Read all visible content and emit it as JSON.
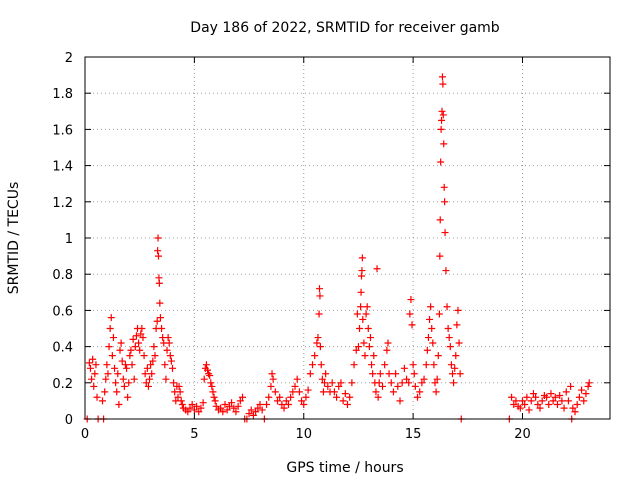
{
  "chart_data": {
    "type": "scatter",
    "title": "Day 186 of 2022, SRMTID for receiver gamb",
    "xlabel": "GPS time / hours",
    "ylabel": "SRMTID / TECUs",
    "xlim": [
      0,
      24
    ],
    "ylim": [
      0,
      2
    ],
    "xticks": [
      0,
      5,
      10,
      15,
      20
    ],
    "xtick_labels": [
      "0",
      "5",
      "10",
      "15",
      "20"
    ],
    "yticks": [
      0,
      0.2,
      0.4,
      0.6,
      0.8,
      1,
      1.2,
      1.4,
      1.6,
      1.8,
      2
    ],
    "ytick_labels": [
      "0",
      "0.2",
      "0.4",
      "0.6",
      "0.8",
      "1",
      "1.2",
      "1.4",
      "1.6",
      "1.8",
      "2"
    ],
    "grid": true,
    "marker": "plus",
    "series": [
      {
        "name": "SRMTID",
        "color": "#ff0000",
        "points": [
          [
            0.1,
            0.0
          ],
          [
            0.2,
            0.31
          ],
          [
            0.25,
            0.28
          ],
          [
            0.3,
            0.22
          ],
          [
            0.35,
            0.33
          ],
          [
            0.4,
            0.18
          ],
          [
            0.45,
            0.25
          ],
          [
            0.5,
            0.3
          ],
          [
            0.55,
            0.12
          ],
          [
            0.6,
            0.0
          ],
          [
            0.8,
            0.1
          ],
          [
            0.85,
            0.0
          ],
          [
            0.9,
            0.15
          ],
          [
            0.95,
            0.22
          ],
          [
            1.0,
            0.3
          ],
          [
            1.05,
            0.25
          ],
          [
            1.1,
            0.4
          ],
          [
            1.15,
            0.5
          ],
          [
            1.2,
            0.56
          ],
          [
            1.25,
            0.35
          ],
          [
            1.3,
            0.45
          ],
          [
            1.35,
            0.28
          ],
          [
            1.4,
            0.2
          ],
          [
            1.45,
            0.15
          ],
          [
            1.5,
            0.25
          ],
          [
            1.55,
            0.08
          ],
          [
            1.6,
            0.38
          ],
          [
            1.65,
            0.42
          ],
          [
            1.7,
            0.32
          ],
          [
            1.75,
            0.22
          ],
          [
            1.8,
            0.18
          ],
          [
            1.85,
            0.3
          ],
          [
            1.9,
            0.28
          ],
          [
            1.95,
            0.12
          ],
          [
            2.0,
            0.2
          ],
          [
            2.05,
            0.35
          ],
          [
            2.1,
            0.38
          ],
          [
            2.15,
            0.3
          ],
          [
            2.2,
            0.44
          ],
          [
            2.25,
            0.22
          ],
          [
            2.3,
            0.4
          ],
          [
            2.35,
            0.46
          ],
          [
            2.4,
            0.5
          ],
          [
            2.45,
            0.42
          ],
          [
            2.5,
            0.38
          ],
          [
            2.55,
            0.47
          ],
          [
            2.6,
            0.5
          ],
          [
            2.65,
            0.45
          ],
          [
            2.7,
            0.35
          ],
          [
            2.75,
            0.25
          ],
          [
            2.8,
            0.2
          ],
          [
            2.85,
            0.28
          ],
          [
            2.9,
            0.18
          ],
          [
            2.95,
            0.22
          ],
          [
            3.0,
            0.3
          ],
          [
            3.05,
            0.25
          ],
          [
            3.1,
            0.32
          ],
          [
            3.15,
            0.4
          ],
          [
            3.2,
            0.35
          ],
          [
            3.25,
            0.5
          ],
          [
            3.3,
            0.54
          ],
          [
            3.32,
            0.93
          ],
          [
            3.34,
            1.0
          ],
          [
            3.36,
            0.9
          ],
          [
            3.38,
            0.78
          ],
          [
            3.4,
            0.75
          ],
          [
            3.42,
            0.64
          ],
          [
            3.45,
            0.56
          ],
          [
            3.5,
            0.5
          ],
          [
            3.55,
            0.45
          ],
          [
            3.6,
            0.42
          ],
          [
            3.65,
            0.3
          ],
          [
            3.7,
            0.22
          ],
          [
            3.75,
            0.38
          ],
          [
            3.8,
            0.45
          ],
          [
            3.85,
            0.42
          ],
          [
            3.9,
            0.35
          ],
          [
            3.95,
            0.32
          ],
          [
            4.0,
            0.28
          ],
          [
            4.05,
            0.2
          ],
          [
            4.1,
            0.15
          ],
          [
            4.15,
            0.1
          ],
          [
            4.2,
            0.18
          ],
          [
            4.25,
            0.12
          ],
          [
            4.3,
            0.18
          ],
          [
            4.35,
            0.15
          ],
          [
            4.4,
            0.1
          ],
          [
            4.45,
            0.08
          ],
          [
            4.5,
            0.06
          ],
          [
            4.6,
            0.05
          ],
          [
            4.7,
            0.04
          ],
          [
            4.8,
            0.06
          ],
          [
            4.9,
            0.08
          ],
          [
            5.0,
            0.05
          ],
          [
            5.1,
            0.07
          ],
          [
            5.2,
            0.04
          ],
          [
            5.3,
            0.06
          ],
          [
            5.4,
            0.09
          ],
          [
            5.45,
            0.22
          ],
          [
            5.5,
            0.28
          ],
          [
            5.55,
            0.3
          ],
          [
            5.6,
            0.27
          ],
          [
            5.65,
            0.25
          ],
          [
            5.7,
            0.24
          ],
          [
            5.75,
            0.2
          ],
          [
            5.8,
            0.18
          ],
          [
            5.85,
            0.15
          ],
          [
            5.9,
            0.12
          ],
          [
            5.95,
            0.1
          ],
          [
            6.0,
            0.07
          ],
          [
            6.1,
            0.05
          ],
          [
            6.2,
            0.06
          ],
          [
            6.3,
            0.04
          ],
          [
            6.4,
            0.08
          ],
          [
            6.5,
            0.05
          ],
          [
            6.6,
            0.07
          ],
          [
            6.7,
            0.09
          ],
          [
            6.8,
            0.06
          ],
          [
            6.9,
            0.04
          ],
          [
            7.0,
            0.07
          ],
          [
            7.1,
            0.1
          ],
          [
            7.2,
            0.12
          ],
          [
            7.3,
            0.0
          ],
          [
            7.4,
            0.0
          ],
          [
            7.5,
            0.03
          ],
          [
            7.6,
            0.05
          ],
          [
            7.7,
            0.02
          ],
          [
            7.8,
            0.04
          ],
          [
            7.9,
            0.06
          ],
          [
            8.0,
            0.08
          ],
          [
            8.1,
            0.05
          ],
          [
            8.2,
            0.0
          ],
          [
            8.3,
            0.08
          ],
          [
            8.4,
            0.12
          ],
          [
            8.5,
            0.18
          ],
          [
            8.55,
            0.25
          ],
          [
            8.6,
            0.22
          ],
          [
            8.7,
            0.15
          ],
          [
            8.8,
            0.1
          ],
          [
            8.9,
            0.12
          ],
          [
            9.0,
            0.08
          ],
          [
            9.1,
            0.06
          ],
          [
            9.2,
            0.1
          ],
          [
            9.3,
            0.08
          ],
          [
            9.4,
            0.12
          ],
          [
            9.5,
            0.15
          ],
          [
            9.6,
            0.18
          ],
          [
            9.7,
            0.22
          ],
          [
            9.8,
            0.15
          ],
          [
            9.9,
            0.1
          ],
          [
            10.0,
            0.08
          ],
          [
            10.1,
            0.12
          ],
          [
            10.2,
            0.16
          ],
          [
            10.3,
            0.25
          ],
          [
            10.4,
            0.3
          ],
          [
            10.5,
            0.35
          ],
          [
            10.6,
            0.42
          ],
          [
            10.65,
            0.45
          ],
          [
            10.7,
            0.58
          ],
          [
            10.72,
            0.72
          ],
          [
            10.74,
            0.68
          ],
          [
            10.76,
            0.4
          ],
          [
            10.8,
            0.3
          ],
          [
            10.85,
            0.22
          ],
          [
            10.9,
            0.15
          ],
          [
            10.95,
            0.2
          ],
          [
            11.0,
            0.25
          ],
          [
            11.1,
            0.18
          ],
          [
            11.2,
            0.15
          ],
          [
            11.3,
            0.2
          ],
          [
            11.4,
            0.15
          ],
          [
            11.5,
            0.12
          ],
          [
            11.6,
            0.18
          ],
          [
            11.7,
            0.2
          ],
          [
            11.8,
            0.1
          ],
          [
            11.9,
            0.14
          ],
          [
            12.0,
            0.08
          ],
          [
            12.1,
            0.12
          ],
          [
            12.2,
            0.2
          ],
          [
            12.3,
            0.3
          ],
          [
            12.4,
            0.38
          ],
          [
            12.45,
            0.58
          ],
          [
            12.5,
            0.4
          ],
          [
            12.55,
            0.5
          ],
          [
            12.6,
            0.62
          ],
          [
            12.62,
            0.7
          ],
          [
            12.64,
            0.79
          ],
          [
            12.66,
            0.82
          ],
          [
            12.68,
            0.89
          ],
          [
            12.7,
            0.55
          ],
          [
            12.75,
            0.42
          ],
          [
            12.8,
            0.35
          ],
          [
            12.85,
            0.58
          ],
          [
            12.9,
            0.62
          ],
          [
            12.95,
            0.5
          ],
          [
            13.0,
            0.4
          ],
          [
            13.05,
            0.45
          ],
          [
            13.1,
            0.3
          ],
          [
            13.15,
            0.25
          ],
          [
            13.2,
            0.35
          ],
          [
            13.25,
            0.2
          ],
          [
            13.3,
            0.15
          ],
          [
            13.35,
            0.83
          ],
          [
            13.4,
            0.12
          ],
          [
            13.45,
            0.2
          ],
          [
            13.5,
            0.25
          ],
          [
            13.6,
            0.18
          ],
          [
            13.7,
            0.3
          ],
          [
            13.8,
            0.38
          ],
          [
            13.85,
            0.42
          ],
          [
            13.9,
            0.25
          ],
          [
            14.0,
            0.2
          ],
          [
            14.1,
            0.15
          ],
          [
            14.2,
            0.25
          ],
          [
            14.3,
            0.18
          ],
          [
            14.4,
            0.1
          ],
          [
            14.5,
            0.2
          ],
          [
            14.6,
            0.28
          ],
          [
            14.7,
            0.22
          ],
          [
            14.8,
            0.2
          ],
          [
            14.85,
            0.58
          ],
          [
            14.9,
            0.66
          ],
          [
            14.95,
            0.52
          ],
          [
            15.0,
            0.3
          ],
          [
            15.05,
            0.25
          ],
          [
            15.1,
            0.18
          ],
          [
            15.2,
            0.12
          ],
          [
            15.3,
            0.15
          ],
          [
            15.4,
            0.2
          ],
          [
            15.5,
            0.22
          ],
          [
            15.6,
            0.3
          ],
          [
            15.65,
            0.38
          ],
          [
            15.7,
            0.45
          ],
          [
            15.75,
            0.55
          ],
          [
            15.8,
            0.62
          ],
          [
            15.85,
            0.5
          ],
          [
            15.9,
            0.42
          ],
          [
            15.95,
            0.3
          ],
          [
            16.0,
            0.2
          ],
          [
            16.05,
            0.15
          ],
          [
            16.1,
            0.22
          ],
          [
            16.15,
            0.35
          ],
          [
            16.2,
            0.58
          ],
          [
            16.22,
            0.9
          ],
          [
            16.24,
            1.1
          ],
          [
            16.26,
            1.42
          ],
          [
            16.28,
            1.6
          ],
          [
            16.3,
            1.65
          ],
          [
            16.32,
            1.7
          ],
          [
            16.34,
            1.89
          ],
          [
            16.36,
            1.85
          ],
          [
            16.38,
            1.68
          ],
          [
            16.4,
            1.52
          ],
          [
            16.42,
            1.28
          ],
          [
            16.44,
            1.2
          ],
          [
            16.46,
            1.03
          ],
          [
            16.5,
            0.82
          ],
          [
            16.55,
            0.62
          ],
          [
            16.6,
            0.5
          ],
          [
            16.65,
            0.45
          ],
          [
            16.7,
            0.4
          ],
          [
            16.75,
            0.3
          ],
          [
            16.8,
            0.25
          ],
          [
            16.85,
            0.2
          ],
          [
            16.9,
            0.28
          ],
          [
            16.95,
            0.35
          ],
          [
            17.0,
            0.52
          ],
          [
            17.05,
            0.6
          ],
          [
            17.1,
            0.42
          ],
          [
            17.15,
            0.25
          ],
          [
            17.2,
            0.0
          ],
          [
            19.4,
            0.0
          ],
          [
            19.5,
            0.12
          ],
          [
            19.6,
            0.08
          ],
          [
            19.7,
            0.1
          ],
          [
            19.8,
            0.07
          ],
          [
            19.9,
            0.06
          ],
          [
            20.0,
            0.1
          ],
          [
            20.1,
            0.08
          ],
          [
            20.2,
            0.12
          ],
          [
            20.3,
            0.05
          ],
          [
            20.4,
            0.1
          ],
          [
            20.5,
            0.14
          ],
          [
            20.6,
            0.12
          ],
          [
            20.7,
            0.08
          ],
          [
            20.8,
            0.06
          ],
          [
            20.9,
            0.1
          ],
          [
            21.0,
            0.13
          ],
          [
            21.1,
            0.12
          ],
          [
            21.2,
            0.08
          ],
          [
            21.3,
            0.14
          ],
          [
            21.4,
            0.1
          ],
          [
            21.5,
            0.12
          ],
          [
            21.6,
            0.08
          ],
          [
            21.7,
            0.13
          ],
          [
            21.8,
            0.1
          ],
          [
            21.9,
            0.06
          ],
          [
            22.0,
            0.15
          ],
          [
            22.1,
            0.1
          ],
          [
            22.2,
            0.18
          ],
          [
            22.25,
            0.0
          ],
          [
            22.3,
            0.06
          ],
          [
            22.4,
            0.04
          ],
          [
            22.5,
            0.08
          ],
          [
            22.6,
            0.12
          ],
          [
            22.7,
            0.16
          ],
          [
            22.8,
            0.1
          ],
          [
            22.9,
            0.14
          ],
          [
            23.0,
            0.18
          ],
          [
            23.05,
            0.2
          ]
        ]
      }
    ]
  }
}
